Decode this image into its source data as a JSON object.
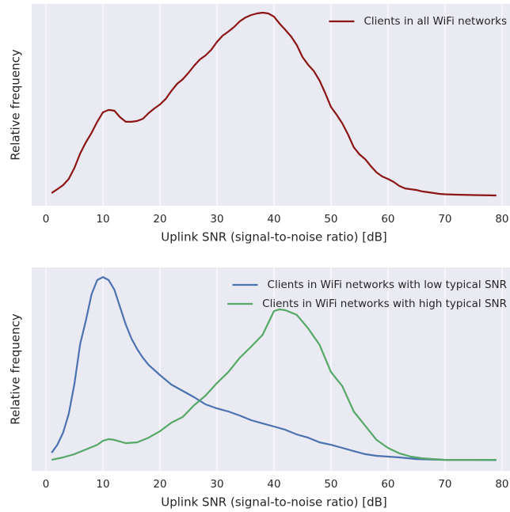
{
  "chart_data": [
    {
      "type": "line",
      "xlabel": "Uplink SNR (signal-to-noise ratio) [dB]",
      "ylabel": "Relative frequency",
      "xlim": [
        -2.5,
        81.4
      ],
      "xticks": [
        0,
        10,
        20,
        30,
        40,
        50,
        60,
        70,
        80
      ],
      "ylim": [
        0,
        1
      ],
      "grid": true,
      "legend": "upper right",
      "series": [
        {
          "name": "Clients in all WiFi networks",
          "color": "#8c1515",
          "x": [
            1,
            2,
            3,
            4,
            5,
            6,
            7,
            8,
            9,
            10,
            11,
            12,
            13,
            14,
            15,
            16,
            17,
            18,
            19,
            20,
            21,
            22,
            23,
            24,
            25,
            26,
            27,
            28,
            29,
            30,
            31,
            32,
            33,
            34,
            35,
            36,
            37,
            38,
            39,
            40,
            41,
            42,
            43,
            44,
            45,
            46,
            47,
            48,
            49,
            50,
            51,
            52,
            53,
            54,
            55,
            56,
            57,
            58,
            59,
            60,
            61,
            62,
            63,
            64,
            65,
            66,
            67,
            68,
            69,
            70,
            72,
            75,
            79
          ],
          "values": [
            0.063,
            0.082,
            0.102,
            0.133,
            0.188,
            0.259,
            0.314,
            0.361,
            0.416,
            0.463,
            0.475,
            0.471,
            0.439,
            0.416,
            0.416,
            0.42,
            0.431,
            0.459,
            0.482,
            0.502,
            0.529,
            0.569,
            0.604,
            0.627,
            0.659,
            0.694,
            0.725,
            0.745,
            0.773,
            0.812,
            0.843,
            0.863,
            0.886,
            0.914,
            0.933,
            0.945,
            0.953,
            0.957,
            0.953,
            0.937,
            0.902,
            0.871,
            0.839,
            0.796,
            0.737,
            0.698,
            0.667,
            0.62,
            0.557,
            0.49,
            0.451,
            0.408,
            0.353,
            0.29,
            0.255,
            0.231,
            0.196,
            0.165,
            0.145,
            0.133,
            0.118,
            0.098,
            0.086,
            0.082,
            0.078,
            0.071,
            0.067,
            0.063,
            0.059,
            0.057,
            0.055,
            0.053,
            0.051
          ]
        }
      ]
    },
    {
      "type": "line",
      "xlabel": "Uplink SNR (signal-to-noise ratio) [dB]",
      "ylabel": "Relative frequency",
      "xlim": [
        -2.5,
        81.4
      ],
      "xticks": [
        0,
        10,
        20,
        30,
        40,
        50,
        60,
        70,
        80
      ],
      "ylim": [
        0,
        1
      ],
      "grid": true,
      "legend": "upper right",
      "series": [
        {
          "name": "Clients in WiFi networks with low typical SNR",
          "color": "#4c72b0",
          "x": [
            1,
            2,
            3,
            4,
            5,
            6,
            7,
            8,
            9,
            10,
            11,
            12,
            13,
            14,
            15,
            16,
            17,
            18,
            20,
            22,
            24,
            26,
            28,
            30,
            32,
            34,
            36,
            38,
            40,
            42,
            44,
            46,
            48,
            50,
            52,
            54,
            56,
            58,
            60,
            62,
            65,
            70,
            75,
            79
          ],
          "values": [
            0.089,
            0.128,
            0.187,
            0.28,
            0.428,
            0.623,
            0.739,
            0.868,
            0.938,
            0.953,
            0.938,
            0.891,
            0.805,
            0.72,
            0.65,
            0.599,
            0.556,
            0.521,
            0.471,
            0.424,
            0.393,
            0.362,
            0.327,
            0.307,
            0.292,
            0.272,
            0.249,
            0.233,
            0.218,
            0.202,
            0.179,
            0.163,
            0.14,
            0.128,
            0.113,
            0.097,
            0.082,
            0.074,
            0.07,
            0.066,
            0.058,
            0.054,
            0.054,
            0.053
          ]
        },
        {
          "name": "Clients in WiFi networks with high typical SNR",
          "color": "#55a868",
          "x": [
            1,
            3,
            5,
            7,
            9,
            10,
            11,
            12,
            14,
            16,
            18,
            20,
            22,
            24,
            26,
            28,
            30,
            32,
            34,
            36,
            38,
            40,
            41,
            42,
            44,
            46,
            48,
            50,
            52,
            54,
            56,
            58,
            60,
            62,
            64,
            66,
            68,
            70,
            75,
            79
          ],
          "values": [
            0.054,
            0.066,
            0.082,
            0.105,
            0.128,
            0.148,
            0.156,
            0.152,
            0.136,
            0.14,
            0.163,
            0.195,
            0.237,
            0.265,
            0.323,
            0.37,
            0.432,
            0.486,
            0.556,
            0.611,
            0.669,
            0.786,
            0.794,
            0.79,
            0.767,
            0.7,
            0.619,
            0.486,
            0.416,
            0.292,
            0.222,
            0.152,
            0.113,
            0.086,
            0.07,
            0.062,
            0.058,
            0.054,
            0.054,
            0.054
          ]
        }
      ]
    }
  ]
}
